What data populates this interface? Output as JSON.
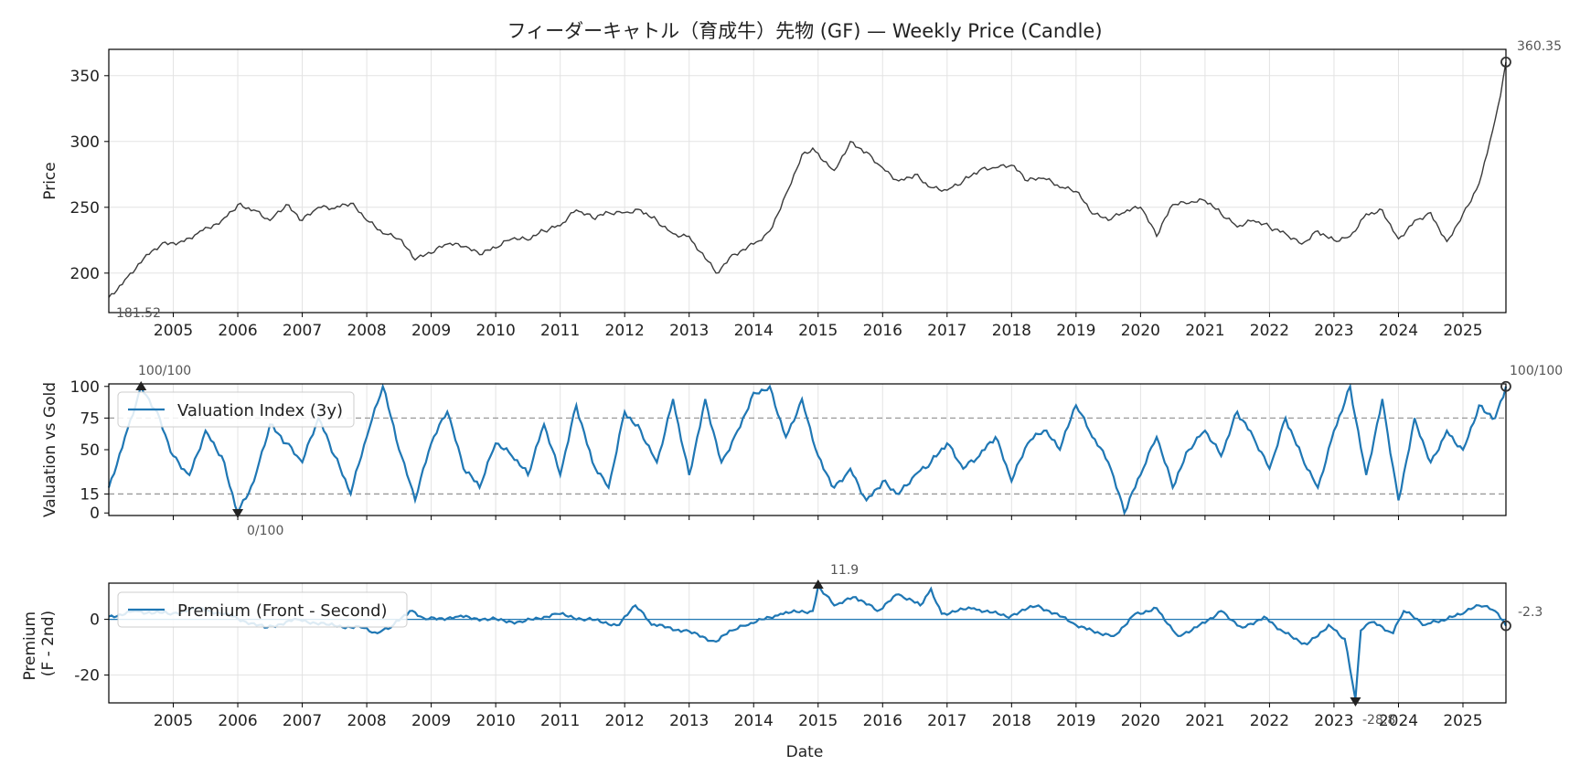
{
  "chart_data": [
    {
      "type": "line",
      "panel": "price",
      "title": "フィーダーキャトル（育成牛）先物 (GF) — Weekly Price (Candle)",
      "ylabel": "Price",
      "xlim": [
        "2004-01",
        "2025-09"
      ],
      "ylim": [
        170,
        370
      ],
      "yticks": [
        200,
        250,
        300,
        350
      ],
      "grid": true,
      "colors": {
        "line": "#3a3a3a"
      },
      "series": [
        {
          "x": [
            "2004-01",
            "2004-04",
            "2004-08",
            "2004-11",
            "2005-03",
            "2005-06",
            "2005-10",
            "2006-01",
            "2006-04",
            "2006-07",
            "2006-10",
            "2007-01",
            "2007-04",
            "2007-07",
            "2007-10",
            "2008-01",
            "2008-04",
            "2008-07",
            "2008-10",
            "2009-01",
            "2009-04",
            "2009-07",
            "2009-10",
            "2010-01",
            "2010-04",
            "2010-07",
            "2010-10",
            "2011-01",
            "2011-04",
            "2011-07",
            "2011-10",
            "2012-01",
            "2012-04",
            "2012-07",
            "2012-10",
            "2013-01",
            "2013-06",
            "2013-09",
            "2014-01",
            "2014-04",
            "2014-07",
            "2014-10",
            "2014-12",
            "2015-04",
            "2015-07",
            "2015-10",
            "2016-01",
            "2016-04",
            "2016-07",
            "2016-10",
            "2017-01",
            "2017-04",
            "2017-07",
            "2017-10",
            "2018-01",
            "2018-04",
            "2018-07",
            "2018-10",
            "2019-01",
            "2019-04",
            "2019-07",
            "2019-10",
            "2020-01",
            "2020-04",
            "2020-07",
            "2020-10",
            "2021-01",
            "2021-04",
            "2021-07",
            "2021-10",
            "2022-01",
            "2022-04",
            "2022-07",
            "2022-10",
            "2023-01",
            "2023-04",
            "2023-07",
            "2023-10",
            "2024-01",
            "2024-04",
            "2024-07",
            "2024-10",
            "2025-01",
            "2025-04",
            "2025-06",
            "2025-08",
            "2025-09"
          ],
          "y": [
            181.52,
            195,
            214,
            223,
            224,
            232,
            240,
            252,
            248,
            240,
            252,
            240,
            250,
            249,
            253,
            240,
            230,
            226,
            210,
            215,
            222,
            220,
            214,
            219,
            226,
            225,
            232,
            236,
            248,
            242,
            246,
            246,
            248,
            240,
            230,
            228,
            200,
            214,
            222,
            232,
            260,
            290,
            295,
            278,
            300,
            292,
            280,
            270,
            275,
            265,
            263,
            270,
            278,
            280,
            282,
            270,
            272,
            265,
            262,
            245,
            240,
            246,
            250,
            228,
            252,
            253,
            255,
            245,
            235,
            240,
            235,
            230,
            222,
            232,
            225,
            228,
            245,
            248,
            226,
            240,
            246,
            224,
            245,
            268,
            300,
            335,
            360.35
          ]
        }
      ],
      "annotations": {
        "min_label": "181.52",
        "max_label": "360.35"
      }
    },
    {
      "type": "line",
      "panel": "valuation",
      "ylabel": "Valuation vs Gold",
      "xlim": [
        "2004-01",
        "2025-09"
      ],
      "ylim": [
        -2,
        102
      ],
      "yticks": [
        0,
        15,
        50,
        75,
        100
      ],
      "reference_lines": [
        15,
        75
      ],
      "legend": {
        "label": "Valuation Index (3y)",
        "placement": "upper-left"
      },
      "colors": {
        "line": "#1f77b4"
      },
      "series": [
        {
          "name": "Valuation Index (3y)",
          "x": [
            "2004-01",
            "2004-04",
            "2004-07",
            "2004-10",
            "2005-01",
            "2005-04",
            "2005-07",
            "2005-10",
            "2006-01",
            "2006-04",
            "2006-07",
            "2006-10",
            "2007-01",
            "2007-04",
            "2007-07",
            "2007-10",
            "2008-01",
            "2008-04",
            "2008-07",
            "2008-10",
            "2009-01",
            "2009-04",
            "2009-07",
            "2009-10",
            "2010-01",
            "2010-04",
            "2010-07",
            "2010-10",
            "2011-01",
            "2011-04",
            "2011-07",
            "2011-10",
            "2012-01",
            "2012-04",
            "2012-07",
            "2012-10",
            "2013-01",
            "2013-04",
            "2013-07",
            "2013-10",
            "2014-01",
            "2014-04",
            "2014-07",
            "2014-10",
            "2015-01",
            "2015-04",
            "2015-07",
            "2015-10",
            "2016-01",
            "2016-04",
            "2016-07",
            "2016-10",
            "2017-01",
            "2017-04",
            "2017-07",
            "2017-10",
            "2018-01",
            "2018-04",
            "2018-07",
            "2018-10",
            "2019-01",
            "2019-04",
            "2019-07",
            "2019-10",
            "2020-01",
            "2020-04",
            "2020-07",
            "2020-10",
            "2021-01",
            "2021-04",
            "2021-07",
            "2021-10",
            "2022-01",
            "2022-04",
            "2022-07",
            "2022-10",
            "2023-01",
            "2023-04",
            "2023-07",
            "2023-10",
            "2024-01",
            "2024-04",
            "2024-07",
            "2024-10",
            "2025-01",
            "2025-04",
            "2025-07",
            "2025-09"
          ],
          "y": [
            20,
            60,
            100,
            80,
            45,
            30,
            65,
            45,
            0,
            25,
            70,
            55,
            40,
            75,
            45,
            15,
            60,
            100,
            50,
            10,
            55,
            80,
            35,
            20,
            55,
            45,
            30,
            70,
            30,
            85,
            40,
            20,
            80,
            65,
            40,
            90,
            30,
            90,
            40,
            65,
            95,
            100,
            60,
            90,
            45,
            20,
            35,
            10,
            25,
            15,
            30,
            40,
            55,
            35,
            45,
            60,
            25,
            55,
            65,
            50,
            85,
            60,
            40,
            0,
            30,
            60,
            20,
            50,
            65,
            45,
            80,
            60,
            35,
            75,
            45,
            20,
            65,
            100,
            30,
            90,
            10,
            75,
            40,
            65,
            50,
            85,
            75,
            100
          ]
        }
      ],
      "annotations": {
        "max_label": "100/100",
        "min_label": "0/100",
        "last_label": "100/100"
      }
    },
    {
      "type": "line",
      "panel": "premium",
      "ylabel": "Premium (F - 2nd)",
      "xlabel": "Date",
      "xlim": [
        "2004-01",
        "2025-09"
      ],
      "ylim": [
        -30,
        13
      ],
      "yticks": [
        -20,
        0
      ],
      "zero_line": true,
      "legend": {
        "label": "Premium (Front - Second)",
        "placement": "upper-left"
      },
      "colors": {
        "line": "#1f77b4"
      },
      "xticks": [
        "2005",
        "2006",
        "2007",
        "2008",
        "2009",
        "2010",
        "2011",
        "2012",
        "2013",
        "2014",
        "2015",
        "2016",
        "2017",
        "2018",
        "2019",
        "2020",
        "2021",
        "2022",
        "2023",
        "2024",
        "2025"
      ],
      "series": [
        {
          "name": "Premium (Front - Second)",
          "x": [
            "2004-01",
            "2004-06",
            "2004-12",
            "2005-06",
            "2005-12",
            "2006-06",
            "2006-12",
            "2007-06",
            "2007-12",
            "2008-03",
            "2008-06",
            "2008-09",
            "2008-12",
            "2009-06",
            "2009-12",
            "2010-06",
            "2010-12",
            "2011-06",
            "2011-12",
            "2012-03",
            "2012-06",
            "2012-12",
            "2013-06",
            "2013-09",
            "2013-12",
            "2014-06",
            "2014-12",
            "2015-01",
            "2015-04",
            "2015-08",
            "2015-12",
            "2016-04",
            "2016-08",
            "2016-10",
            "2016-12",
            "2017-06",
            "2017-12",
            "2018-06",
            "2018-12",
            "2019-04",
            "2019-08",
            "2019-12",
            "2020-04",
            "2020-08",
            "2020-12",
            "2021-04",
            "2021-08",
            "2021-12",
            "2022-04",
            "2022-08",
            "2022-12",
            "2023-03",
            "2023-05",
            "2023-06",
            "2023-08",
            "2023-12",
            "2024-02",
            "2024-06",
            "2024-10",
            "2025-01",
            "2025-04",
            "2025-07",
            "2025-09"
          ],
          "y": [
            1,
            3,
            2,
            4,
            1,
            -3,
            0,
            -2,
            -3,
            -5,
            -2,
            3,
            0,
            1,
            0,
            -1,
            2,
            0,
            -2,
            5,
            -2,
            -4,
            -8,
            -4,
            -2,
            2,
            3,
            11.9,
            5,
            8,
            3,
            9,
            5,
            11,
            2,
            4,
            1,
            5,
            -1,
            -4,
            -6,
            2,
            4,
            -6,
            -2,
            3,
            -3,
            1,
            -5,
            -9,
            -2,
            -7,
            -28.8,
            -4,
            -1,
            -5,
            3,
            -2,
            0,
            2,
            5,
            3,
            -2.3
          ]
        }
      ],
      "annotations": {
        "max_label": "11.9",
        "min_label": "-28.8",
        "last_label": "-2.3"
      }
    }
  ]
}
